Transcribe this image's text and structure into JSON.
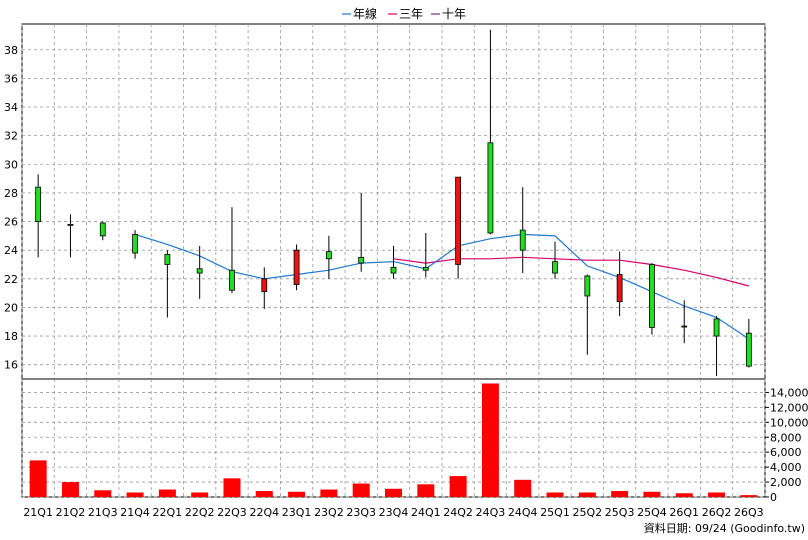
{
  "chart_data": {
    "type": "candlestick_with_volume",
    "legend": [
      {
        "label": "年線",
        "color": "#1f77d0"
      },
      {
        "label": "三年",
        "color": "#d8006b"
      },
      {
        "label": "十年",
        "color": "#7a2a7a"
      }
    ],
    "categories": [
      "21Q1",
      "21Q2",
      "21Q3",
      "21Q4",
      "22Q1",
      "22Q2",
      "22Q3",
      "22Q4",
      "23Q1",
      "23Q2",
      "23Q3",
      "23Q4",
      "24Q1",
      "24Q2",
      "24Q3",
      "24Q4",
      "25Q1",
      "25Q2",
      "25Q3",
      "25Q4",
      "26Q1",
      "26Q2",
      "26Q3"
    ],
    "price_axis": {
      "min": 15.0,
      "max": 39.8,
      "ticks": [
        16,
        18,
        20,
        22,
        24,
        26,
        28,
        30,
        32,
        34,
        36,
        38
      ]
    },
    "volume_axis": {
      "min": 0,
      "max": 15800,
      "ticks": [
        0,
        2000,
        4000,
        6000,
        8000,
        10000,
        12000,
        14000
      ],
      "tick_labels": [
        "0",
        "2,000",
        "4,000",
        "6,000",
        "8,000",
        "10,000",
        "12,000",
        "14,000"
      ]
    },
    "candles": [
      {
        "o": 26.0,
        "h": 29.3,
        "l": 23.5,
        "c": 28.4
      },
      {
        "o": 25.8,
        "h": 26.5,
        "l": 23.5,
        "c": 25.8
      },
      {
        "o": 25.0,
        "h": 26.0,
        "l": 24.7,
        "c": 25.9
      },
      {
        "o": 23.8,
        "h": 25.4,
        "l": 23.4,
        "c": 25.1
      },
      {
        "o": 23.0,
        "h": 24.0,
        "l": 19.3,
        "c": 23.7
      },
      {
        "o": 22.4,
        "h": 24.3,
        "l": 20.6,
        "c": 22.7
      },
      {
        "o": 21.2,
        "h": 27.0,
        "l": 21.0,
        "c": 22.6
      },
      {
        "o": 22.0,
        "h": 22.8,
        "l": 19.9,
        "c": 21.1
      },
      {
        "o": 24.0,
        "h": 24.4,
        "l": 21.2,
        "c": 21.6
      },
      {
        "o": 23.4,
        "h": 25.0,
        "l": 22.0,
        "c": 23.9
      },
      {
        "o": 23.1,
        "h": 28.0,
        "l": 22.5,
        "c": 23.5
      },
      {
        "o": 22.4,
        "h": 24.3,
        "l": 22.0,
        "c": 22.8
      },
      {
        "o": 22.6,
        "h": 25.2,
        "l": 22.1,
        "c": 22.8
      },
      {
        "o": 29.1,
        "h": 29.1,
        "l": 22.0,
        "c": 23.0
      },
      {
        "o": 25.2,
        "h": 39.4,
        "l": 25.1,
        "c": 31.5
      },
      {
        "o": 24.0,
        "h": 28.4,
        "l": 22.4,
        "c": 25.4
      },
      {
        "o": 22.4,
        "h": 24.6,
        "l": 22.0,
        "c": 23.2
      },
      {
        "o": 20.8,
        "h": 22.3,
        "l": 16.7,
        "c": 22.2
      },
      {
        "o": 22.3,
        "h": 23.9,
        "l": 19.4,
        "c": 20.4
      },
      {
        "o": 18.6,
        "h": 23.1,
        "l": 18.1,
        "c": 23.0
      },
      {
        "o": 18.7,
        "h": 20.5,
        "l": 17.5,
        "c": 18.7
      },
      {
        "o": 18.0,
        "h": 19.4,
        "l": 15.2,
        "c": 19.2
      },
      {
        "o": 15.9,
        "h": 19.2,
        "l": 15.8,
        "c": 18.2
      }
    ],
    "ma_year": [
      null,
      null,
      null,
      25.1,
      24.4,
      23.6,
      22.5,
      22.0,
      22.3,
      22.6,
      23.1,
      23.2,
      22.7,
      24.3,
      24.8,
      25.1,
      25.0,
      22.9,
      22.1,
      21.1,
      20.1,
      19.3,
      17.8
    ],
    "ma_three": [
      null,
      null,
      null,
      null,
      null,
      null,
      null,
      null,
      null,
      null,
      null,
      23.4,
      23.1,
      23.4,
      23.4,
      23.5,
      23.4,
      23.3,
      23.3,
      23.0,
      22.6,
      22.1,
      21.5
    ],
    "volume": [
      4900,
      2000,
      900,
      600,
      1000,
      600,
      2500,
      800,
      700,
      1000,
      1800,
      1100,
      1700,
      2800,
      15200,
      2300,
      600,
      600,
      800,
      700,
      500,
      600,
      250
    ],
    "footer": "資料日期: 09/24  (Goodinfo.tw)"
  }
}
